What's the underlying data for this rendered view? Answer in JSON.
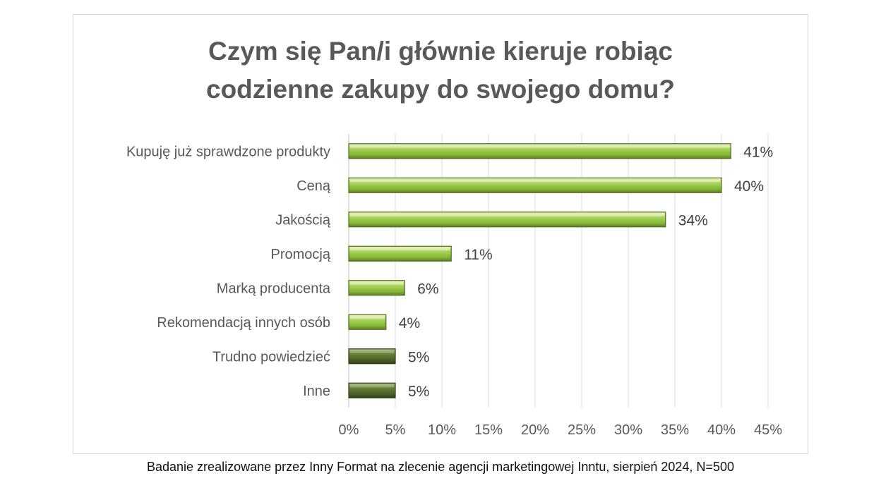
{
  "chart_data": {
    "type": "bar",
    "orientation": "horizontal",
    "title_lines": [
      "Czym się Pan/i głównie kieruje robiąc",
      "codzienne zakupy do swojego domu?"
    ],
    "categories": [
      "Kupuję już sprawdzone produkty",
      "Ceną",
      "Jakością",
      "Promocją",
      "Marką producenta",
      "Rekomendacją innych osób",
      "Trudno powiedzieć",
      "Inne"
    ],
    "values": [
      41,
      40,
      34,
      11,
      6,
      4,
      5,
      5
    ],
    "value_labels": [
      "41%",
      "40%",
      "34%",
      "11%",
      "6%",
      "4%",
      "5%",
      "5%"
    ],
    "bar_colors": [
      "#92c13e",
      "#92c13e",
      "#92c13e",
      "#92c13e",
      "#92c13e",
      "#92c13e",
      "#4f6228",
      "#4f6228"
    ],
    "xlim": [
      0,
      45
    ],
    "x_ticks": [
      "0%",
      "5%",
      "10%",
      "15%",
      "20%",
      "25%",
      "30%",
      "35%",
      "40%",
      "45%"
    ],
    "grid": true,
    "legend": "none"
  },
  "footnote": "Badanie zrealizowane przez Inny Format na zlecenie agencji marketingowej Inntu, sierpień 2024, N=500"
}
